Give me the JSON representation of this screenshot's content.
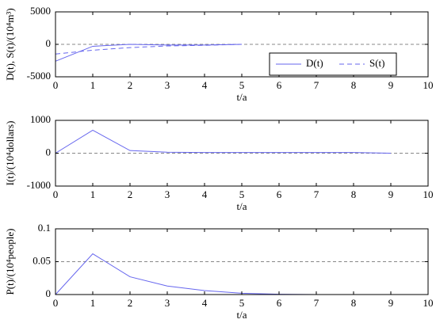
{
  "chart_data": [
    {
      "type": "line",
      "ylabel": "D(t), S(t)/(10⁴m³)",
      "xlabel": "t/a",
      "xlim": [
        0,
        10
      ],
      "xticks": [
        0,
        1,
        2,
        3,
        4,
        5,
        6,
        7,
        8,
        9,
        10
      ],
      "ylim": [
        -5000,
        5000
      ],
      "yticks": [
        -5000,
        0,
        5000
      ],
      "reference_line": 0,
      "legend": "lower right",
      "series": [
        {
          "name": "D(t)",
          "color": "#6666ee",
          "dash": "solid",
          "x": [
            0,
            1,
            2,
            3,
            4,
            5
          ],
          "values": [
            -2600,
            -300,
            0,
            -100,
            -100,
            0
          ]
        },
        {
          "name": "S(t)",
          "color": "#6666ee",
          "dash": "dashed",
          "x": [
            0,
            1,
            2,
            3,
            4,
            5
          ],
          "values": [
            -1500,
            -900,
            -500,
            -250,
            -150,
            0
          ]
        }
      ]
    },
    {
      "type": "line",
      "ylabel": "I(t)/(10⁴dollars)",
      "xlabel": "t/a",
      "xlim": [
        0,
        10
      ],
      "xticks": [
        0,
        1,
        2,
        3,
        4,
        5,
        6,
        7,
        8,
        9,
        10
      ],
      "ylim": [
        -1000,
        1000
      ],
      "yticks": [
        -1000,
        0,
        1000
      ],
      "reference_line": 0,
      "series": [
        {
          "color": "#6666ee",
          "dash": "solid",
          "x": [
            0,
            1,
            2,
            3,
            4,
            5,
            6,
            7,
            8,
            9
          ],
          "values": [
            0,
            700,
            80,
            30,
            20,
            20,
            20,
            20,
            20,
            0
          ]
        }
      ]
    },
    {
      "type": "line",
      "ylabel": "P(t)/(10⁴people)",
      "xlabel": "t/a",
      "xlim": [
        0,
        10
      ],
      "xticks": [
        0,
        1,
        2,
        3,
        4,
        5,
        6,
        7,
        8,
        9,
        10
      ],
      "ylim": [
        0,
        0.1
      ],
      "yticks": [
        0,
        0.05,
        0.1
      ],
      "reference_line": 0.05,
      "series": [
        {
          "color": "#6666ee",
          "dash": "solid",
          "x": [
            0,
            1,
            2,
            3,
            4,
            5,
            6,
            7,
            8,
            9,
            10
          ],
          "values": [
            0,
            0.062,
            0.027,
            0.013,
            0.006,
            0.002,
            0.0005,
            0,
            0,
            0,
            0
          ]
        }
      ]
    }
  ]
}
